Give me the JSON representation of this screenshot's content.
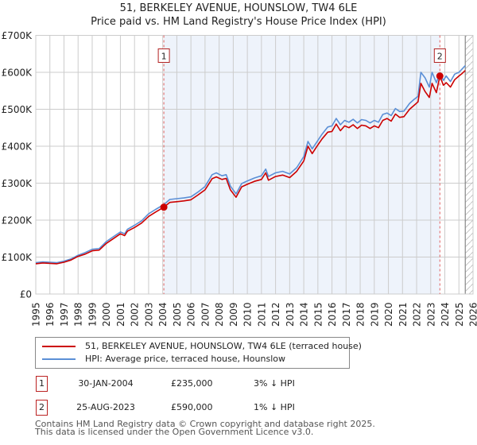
{
  "header": {
    "title": "51, BERKELEY AVENUE, HOUNSLOW, TW4 6LE",
    "subtitle": "Price paid vs. HM Land Registry's House Price Index (HPI)"
  },
  "colors": {
    "price_line": "#cc0000",
    "hpi_line": "#5b8fd6",
    "shade": "#eef3fb",
    "marker_border": "#b22222",
    "grid": "#cccccc"
  },
  "chart_data": {
    "type": "line",
    "title": "51, BERKELEY AVENUE, HOUNSLOW, TW4 6LE — Price paid vs. HM Land Registry's House Price Index (HPI)",
    "xlabel": "",
    "ylabel": "",
    "xlim": [
      1995,
      2026
    ],
    "ylim": [
      0,
      700000
    ],
    "grid": true,
    "y_ticks": [
      {
        "value": 0,
        "label": "£0"
      },
      {
        "value": 100000,
        "label": "£100K"
      },
      {
        "value": 200000,
        "label": "£200K"
      },
      {
        "value": 300000,
        "label": "£300K"
      },
      {
        "value": 400000,
        "label": "£400K"
      },
      {
        "value": 500000,
        "label": "£500K"
      },
      {
        "value": 600000,
        "label": "£600K"
      },
      {
        "value": 700000,
        "label": "£700K"
      }
    ],
    "x_ticks": [
      "1995",
      "1996",
      "1997",
      "1998",
      "1999",
      "2000",
      "2001",
      "2002",
      "2003",
      "2004",
      "2005",
      "2006",
      "2007",
      "2008",
      "2009",
      "2010",
      "2011",
      "2012",
      "2013",
      "2014",
      "2015",
      "2016",
      "2017",
      "2018",
      "2019",
      "2020",
      "2021",
      "2022",
      "2023",
      "2024",
      "2025",
      "2026"
    ],
    "legend_position": "below",
    "shaded_period": [
      2004.08,
      2023.65
    ],
    "data_end": 2025.45,
    "series": [
      {
        "name": "51, BERKELEY AVENUE, HOUNSLOW, TW4 6LE (terraced house)",
        "color": "#cc0000",
        "x": [
          1995.0,
          1995.5,
          1996.0,
          1996.5,
          1997.0,
          1997.5,
          1998.0,
          1998.5,
          1999.0,
          1999.5,
          2000.0,
          2000.5,
          2001.0,
          2001.3,
          2001.5,
          2002.0,
          2002.5,
          2003.0,
          2003.5,
          2004.08,
          2004.5,
          2005.0,
          2005.5,
          2006.0,
          2006.5,
          2007.0,
          2007.5,
          2007.8,
          2008.2,
          2008.5,
          2008.8,
          2009.2,
          2009.6,
          2010.0,
          2010.5,
          2011.0,
          2011.3,
          2011.5,
          2012.0,
          2012.5,
          2013.0,
          2013.5,
          2014.0,
          2014.3,
          2014.6,
          2014.9,
          2015.3,
          2015.7,
          2016.0,
          2016.3,
          2016.6,
          2016.9,
          2017.2,
          2017.5,
          2017.8,
          2018.1,
          2018.4,
          2018.7,
          2019.0,
          2019.3,
          2019.6,
          2019.9,
          2020.2,
          2020.5,
          2020.8,
          2021.1,
          2021.5,
          2021.8,
          2022.1,
          2022.3,
          2022.6,
          2022.9,
          2023.1,
          2023.4,
          2023.65,
          2023.9,
          2024.1,
          2024.4,
          2024.7,
          2025.0,
          2025.2,
          2025.45
        ],
        "y": [
          82000,
          84000,
          83000,
          82000,
          86000,
          92000,
          102000,
          108000,
          117000,
          119000,
          137000,
          150000,
          163000,
          158000,
          170000,
          180000,
          192000,
          210000,
          222000,
          235000,
          248000,
          250000,
          252000,
          255000,
          268000,
          282000,
          312000,
          317000,
          310000,
          313000,
          282000,
          262000,
          290000,
          297000,
          305000,
          310000,
          328000,
          308000,
          318000,
          322000,
          315000,
          332000,
          360000,
          400000,
          380000,
          398000,
          420000,
          438000,
          440000,
          460000,
          442000,
          455000,
          450000,
          458000,
          448000,
          457000,
          455000,
          448000,
          455000,
          450000,
          470000,
          475000,
          468000,
          487000,
          478000,
          480000,
          500000,
          510000,
          520000,
          570000,
          548000,
          532000,
          570000,
          545000,
          590000,
          565000,
          572000,
          560000,
          580000,
          590000,
          596000,
          605000
        ]
      },
      {
        "name": "HPI: Average price, terraced house, Hounslow",
        "color": "#5b8fd6",
        "x": [
          1995.0,
          1995.5,
          1996.0,
          1996.5,
          1997.0,
          1997.5,
          1998.0,
          1998.5,
          1999.0,
          1999.5,
          2000.0,
          2000.5,
          2001.0,
          2001.3,
          2001.5,
          2002.0,
          2002.5,
          2003.0,
          2003.5,
          2004.08,
          2004.5,
          2005.0,
          2005.5,
          2006.0,
          2006.5,
          2007.0,
          2007.5,
          2007.8,
          2008.2,
          2008.5,
          2008.8,
          2009.2,
          2009.6,
          2010.0,
          2010.5,
          2011.0,
          2011.3,
          2011.5,
          2012.0,
          2012.5,
          2013.0,
          2013.5,
          2014.0,
          2014.3,
          2014.6,
          2014.9,
          2015.3,
          2015.7,
          2016.0,
          2016.3,
          2016.6,
          2016.9,
          2017.2,
          2017.5,
          2017.8,
          2018.1,
          2018.4,
          2018.7,
          2019.0,
          2019.3,
          2019.6,
          2019.9,
          2020.2,
          2020.5,
          2020.8,
          2021.1,
          2021.5,
          2021.8,
          2022.1,
          2022.3,
          2022.6,
          2022.9,
          2023.1,
          2023.4,
          2023.65,
          2023.9,
          2024.1,
          2024.4,
          2024.7,
          2025.0,
          2025.2,
          2025.45
        ],
        "y": [
          85000,
          87000,
          86000,
          85000,
          89000,
          95000,
          105000,
          112000,
          121000,
          123000,
          142000,
          155000,
          168000,
          163000,
          175000,
          186000,
          198000,
          217000,
          229000,
          242000,
          256000,
          258000,
          260000,
          263000,
          276000,
          291000,
          323000,
          328000,
          320000,
          323000,
          292000,
          271000,
          299000,
          306000,
          314000,
          320000,
          338000,
          318000,
          328000,
          332000,
          325000,
          342000,
          372000,
          413000,
          393000,
          410000,
          433000,
          452000,
          455000,
          475000,
          458000,
          470000,
          465000,
          473000,
          463000,
          472000,
          470000,
          463000,
          470000,
          465000,
          486000,
          490000,
          483000,
          502000,
          494000,
          495000,
          516000,
          526000,
          535000,
          600000,
          585000,
          560000,
          600000,
          572000,
          598000,
          578000,
          590000,
          575000,
          595000,
          600000,
          608000,
          618000
        ]
      }
    ],
    "markers": [
      {
        "id": "1",
        "x": 2004.08,
        "value": 235000
      },
      {
        "id": "2",
        "x": 2023.65,
        "value": 590000
      }
    ]
  },
  "legend": {
    "items": [
      {
        "label": "51, BERKELEY AVENUE, HOUNSLOW, TW4 6LE (terraced house)",
        "color": "#cc0000"
      },
      {
        "label": "HPI: Average price, terraced house, Hounslow",
        "color": "#5b8fd6"
      }
    ]
  },
  "transactions": [
    {
      "id": "1",
      "date": "30-JAN-2004",
      "price": "£235,000",
      "hpi": "3% ↓ HPI"
    },
    {
      "id": "2",
      "date": "25-AUG-2023",
      "price": "£590,000",
      "hpi": "1% ↓ HPI"
    }
  ],
  "footer": {
    "line1": "Contains HM Land Registry data © Crown copyright and database right 2025.",
    "line2": "This data is licensed under the Open Government Licence v3.0."
  }
}
